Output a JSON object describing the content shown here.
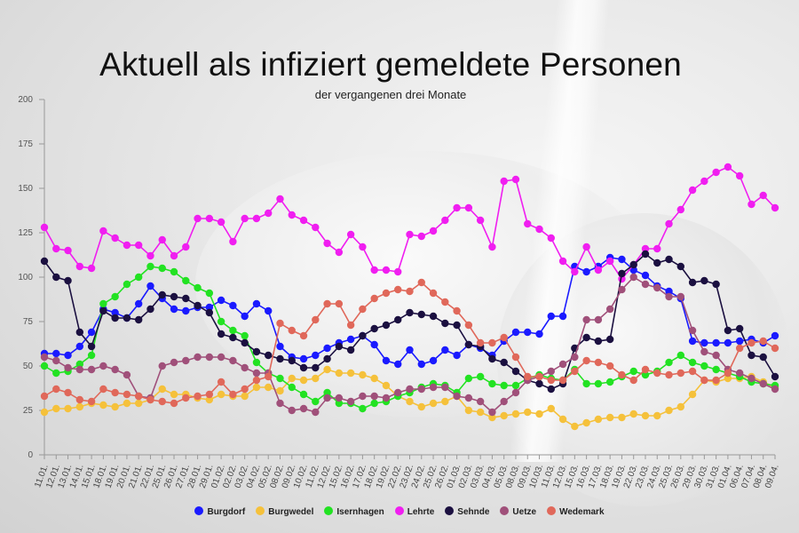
{
  "chart_data": {
    "type": "line",
    "title": "Aktuell als infiziert gemeldete Personen",
    "subtitle": "der vergangenen drei Monate",
    "ylim": [
      0,
      200
    ],
    "yticks": [
      0,
      25,
      50,
      75,
      100,
      125,
      150,
      175,
      200
    ],
    "x": [
      "11.01.",
      "12.01.",
      "13.01.",
      "14.01.",
      "15.01.",
      "18.01.",
      "19.01.",
      "20.01.",
      "21.01.",
      "22.01.",
      "25.01.",
      "26.01.",
      "27.01.",
      "28.01.",
      "29.01.",
      "01.02.",
      "02.02.",
      "03.02.",
      "04.02.",
      "05.02.",
      "08.02.",
      "09.02.",
      "10.02.",
      "11.02.",
      "12.02.",
      "15.02.",
      "16.02.",
      "17.02.",
      "18.02.",
      "19.02.",
      "22.02.",
      "23.02.",
      "24.02.",
      "25.02.",
      "26.02.",
      "01.03.",
      "02.03.",
      "03.03.",
      "04.03.",
      "05.03.",
      "08.03.",
      "09.03.",
      "10.03.",
      "11.03.",
      "12.03.",
      "15.03.",
      "16.03.",
      "17.03.",
      "18.03.",
      "19.03.",
      "22.03.",
      "23.03.",
      "24.03.",
      "25.03.",
      "26.03.",
      "29.03.",
      "30.03.",
      "31.03.",
      "01.04.",
      "06.04.",
      "07.04.",
      "08.04.",
      "09.04."
    ],
    "xtick_labels": [
      "11.01.",
      "12.01.",
      "13.01.",
      "14.01.",
      "15.01.",
      "18.01.",
      "19.01.",
      "20.01.",
      "21.01.",
      "22.01.",
      "25.01.",
      "26.01.",
      "27.01.",
      "28.01.",
      "29.01.",
      "01.02.",
      "02.02.",
      "03.02.",
      "04.02.",
      "05.02.",
      "08.02.",
      "09.02.",
      "10.02.",
      "11.02.",
      "12.02.",
      "15.02.",
      "16.02.",
      "17.02.",
      "18.02.",
      "19.02.",
      "22.02.",
      "23.02.",
      "24.02.",
      "25.02.",
      "26.02.",
      "01.03.",
      "02.03.",
      "03.03.",
      "04.03.",
      "05.03.",
      "08.03.",
      "09.03.",
      "10.03.",
      "11.03.",
      "12.03.",
      "15.03.",
      "16.03.",
      "17.03.",
      "18.03.",
      "19.03.",
      "22.03.",
      "23.03.",
      "24.03.",
      "25.03.",
      "26.03.",
      "29.03.",
      "30.03.",
      "31.03.",
      "01.04.",
      "06.04.",
      "07.04.",
      "08.04.",
      "09.04."
    ],
    "grid": false,
    "legend_position": "bottom",
    "series": [
      {
        "name": "Burgdorf",
        "color": "#1a1aff",
        "values": [
          57,
          57,
          56,
          61,
          69,
          82,
          80,
          77,
          85,
          95,
          88,
          82,
          81,
          83,
          83,
          87,
          84,
          78,
          85,
          81,
          61,
          55,
          54,
          56,
          60,
          63,
          65,
          67,
          62,
          53,
          51,
          59,
          51,
          53,
          59,
          56,
          62,
          60,
          56,
          64,
          69,
          69,
          68,
          78,
          78,
          106,
          103,
          106,
          111,
          110,
          104,
          101,
          95,
          92,
          88,
          64,
          63,
          63,
          63,
          64,
          65,
          63,
          67
        ]
      },
      {
        "name": "Burgwedel",
        "color": "#f5c13b",
        "values": [
          24,
          26,
          26,
          27,
          29,
          28,
          27,
          29,
          29,
          31,
          37,
          34,
          34,
          32,
          31,
          34,
          33,
          33,
          38,
          38,
          36,
          43,
          42,
          43,
          48,
          46,
          46,
          45,
          43,
          39,
          33,
          30,
          27,
          29,
          30,
          33,
          25,
          24,
          21,
          22,
          23,
          24,
          23,
          26,
          20,
          16,
          18,
          20,
          21,
          21,
          23,
          22,
          22,
          25,
          27,
          34,
          42,
          41,
          43,
          43,
          44,
          41,
          38
        ]
      },
      {
        "name": "Isernhagen",
        "color": "#22e222",
        "values": [
          50,
          46,
          47,
          51,
          56,
          85,
          89,
          96,
          100,
          106,
          105,
          103,
          98,
          94,
          91,
          75,
          70,
          67,
          52,
          46,
          43,
          38,
          34,
          30,
          35,
          29,
          29,
          26,
          29,
          30,
          33,
          35,
          38,
          40,
          39,
          35,
          43,
          44,
          40,
          39,
          39,
          43,
          45,
          43,
          42,
          48,
          40,
          40,
          41,
          44,
          47,
          45,
          47,
          52,
          56,
          52,
          50,
          48,
          46,
          44,
          41,
          40,
          39
        ]
      },
      {
        "name": "Lehrte",
        "color": "#f01ef0",
        "values": [
          128,
          116,
          115,
          106,
          105,
          126,
          122,
          118,
          118,
          112,
          121,
          112,
          117,
          133,
          133,
          131,
          120,
          133,
          133,
          136,
          144,
          135,
          132,
          128,
          119,
          114,
          124,
          117,
          104,
          104,
          103,
          124,
          123,
          126,
          132,
          139,
          139,
          132,
          117,
          154,
          155,
          130,
          127,
          122,
          109,
          103,
          117,
          104,
          109,
          99,
          107,
          116,
          116,
          130,
          138,
          149,
          154,
          159,
          162,
          157,
          141,
          146,
          139
        ]
      },
      {
        "name": "Sehnde",
        "color": "#1b1040",
        "values": [
          109,
          100,
          98,
          69,
          61,
          81,
          77,
          77,
          76,
          82,
          90,
          89,
          88,
          84,
          80,
          68,
          66,
          63,
          58,
          56,
          54,
          53,
          49,
          49,
          54,
          61,
          59,
          67,
          71,
          73,
          76,
          80,
          79,
          78,
          74,
          73,
          62,
          61,
          54,
          52,
          47,
          42,
          40,
          37,
          40,
          60,
          66,
          64,
          65,
          102,
          107,
          113,
          108,
          110,
          106,
          97,
          98,
          96,
          70,
          71,
          56,
          55,
          44
        ]
      },
      {
        "name": "Uetze",
        "color": "#a0507a",
        "values": [
          55,
          53,
          49,
          48,
          48,
          50,
          48,
          45,
          33,
          32,
          50,
          52,
          53,
          55,
          55,
          55,
          53,
          49,
          46,
          46,
          29,
          25,
          26,
          24,
          32,
          32,
          30,
          33,
          33,
          32,
          35,
          37,
          37,
          38,
          38,
          33,
          32,
          30,
          24,
          30,
          35,
          42,
          44,
          47,
          51,
          55,
          76,
          76,
          82,
          93,
          100,
          96,
          94,
          89,
          89,
          70,
          58,
          56,
          48,
          46,
          43,
          40,
          37
        ]
      },
      {
        "name": "Wedemark",
        "color": "#e0685a",
        "values": [
          33,
          37,
          35,
          31,
          30,
          37,
          35,
          34,
          33,
          31,
          30,
          29,
          32,
          33,
          34,
          41,
          34,
          37,
          42,
          44,
          74,
          70,
          67,
          76,
          85,
          85,
          73,
          82,
          88,
          91,
          93,
          92,
          97,
          91,
          86,
          81,
          73,
          63,
          63,
          66,
          55,
          44,
          44,
          42,
          42,
          47,
          53,
          52,
          50,
          45,
          42,
          48,
          46,
          45,
          46,
          47,
          42,
          42,
          46,
          60,
          63,
          64,
          60
        ]
      }
    ]
  }
}
